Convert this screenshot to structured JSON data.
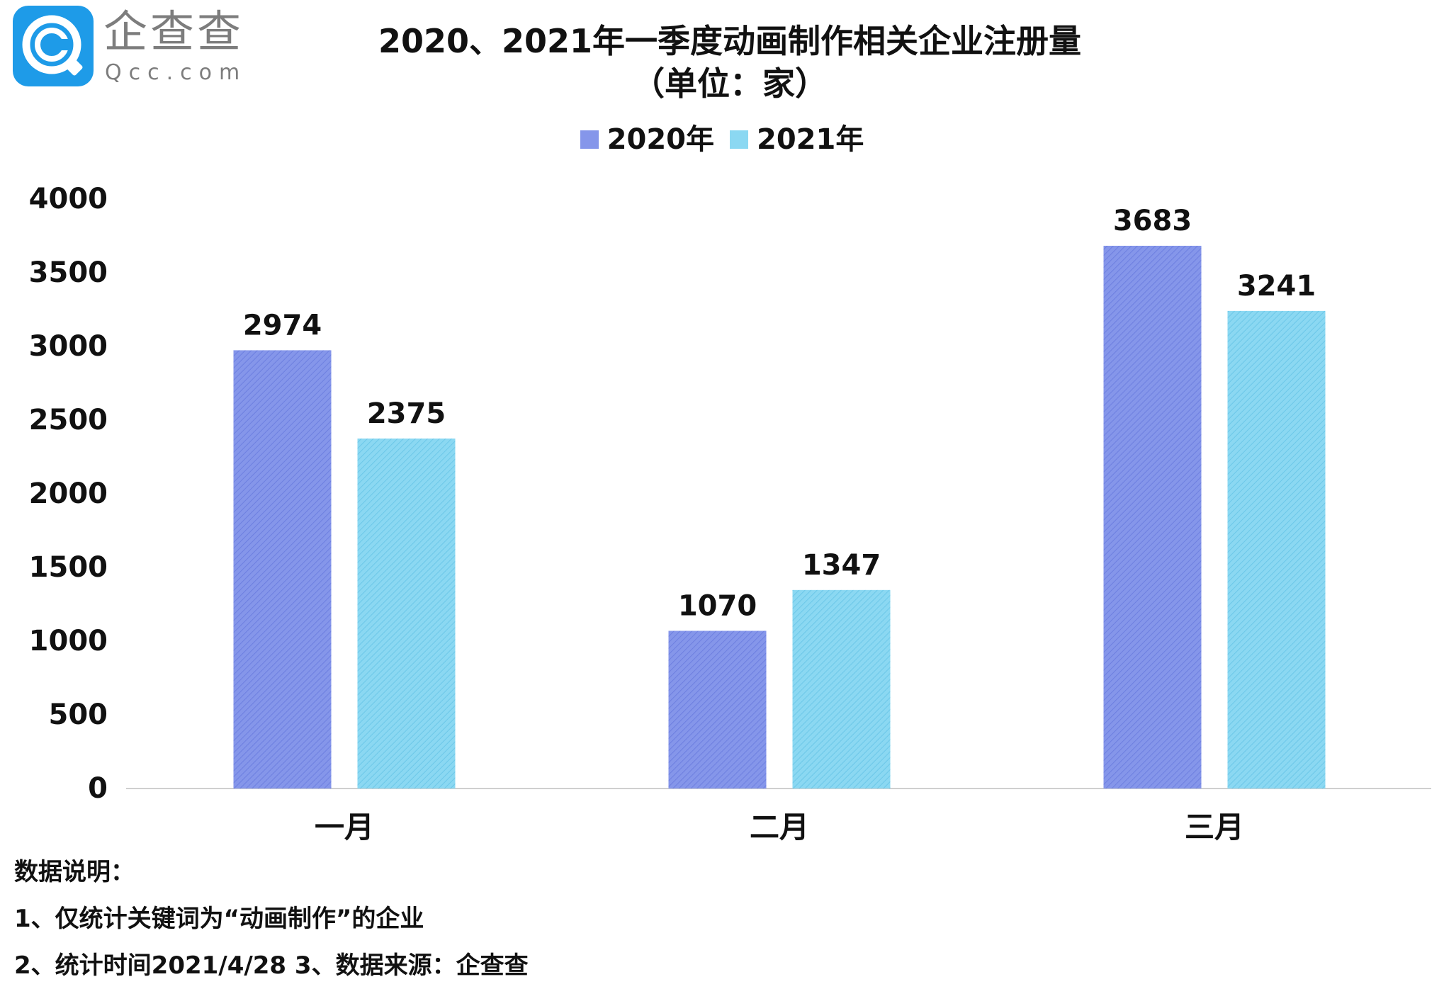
{
  "logo": {
    "name": "企查查",
    "domain": "Qcc.com"
  },
  "title": {
    "main": "2020、2021年一季度动画制作相关企业注册量",
    "sub": "（单位：家）"
  },
  "colors": {
    "series_2020": "#8596ea",
    "series_2021": "#8bd8f2",
    "logo_blue": "#1e9be8",
    "axis": "#cfcfcf"
  },
  "chart_data": {
    "type": "bar",
    "title": "2020、2021年一季度动画制作相关企业注册量（单位：家）",
    "categories": [
      "一月",
      "二月",
      "三月"
    ],
    "series": [
      {
        "name": "2020年",
        "values": [
          2974,
          1070,
          3683
        ]
      },
      {
        "name": "2021年",
        "values": [
          2375,
          1347,
          3241
        ]
      }
    ],
    "ylim": [
      0,
      4000
    ],
    "yticks": [
      "0",
      "500",
      "1000",
      "1500",
      "2000",
      "2500",
      "3000",
      "3500",
      "4000"
    ],
    "grid": false,
    "legend": "top-center",
    "data_labels": true
  },
  "notes": {
    "heading": "数据说明：",
    "lines": [
      "1、仅统计关键词为“动画制作”的企业",
      "2、统计时间2021/4/28    3、数据来源：企查查"
    ]
  }
}
